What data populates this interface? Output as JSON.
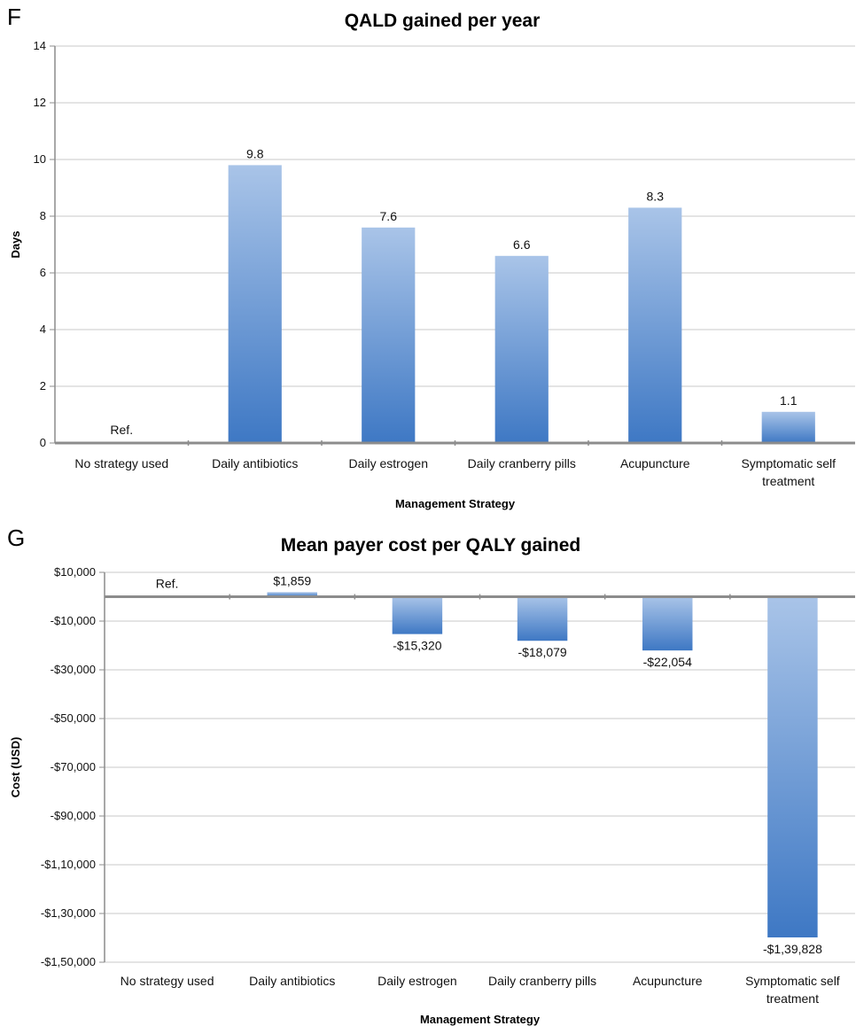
{
  "chart_data": [
    {
      "panel": "F",
      "type": "bar",
      "title": "QALD gained per year",
      "xlabel": "Management Strategy",
      "ylabel": "Days",
      "categories": [
        "No strategy used",
        "Daily antibiotics",
        "Daily estrogen",
        "Daily cranberry pills",
        "Acupuncture",
        "Symptomatic self treatment"
      ],
      "values": [
        0,
        9.8,
        7.6,
        6.6,
        8.3,
        1.1
      ],
      "data_labels": [
        "Ref.",
        "9.8",
        "7.6",
        "6.6",
        "8.3",
        "1.1"
      ],
      "yticks": [
        0,
        2,
        4,
        6,
        8,
        10,
        12,
        14
      ],
      "ytick_labels": [
        "0",
        "2",
        "4",
        "6",
        "8",
        "10",
        "12",
        "14"
      ],
      "ylim": [
        0,
        14
      ],
      "grid": true,
      "legend": "none",
      "colors": {
        "bar_light": "#a9c4e8",
        "bar_dark": "#3e78c4",
        "axis": "#8c8c8c",
        "grid": "#c8c8c8"
      }
    },
    {
      "panel": "G",
      "type": "bar",
      "title": "Mean payer cost per QALY gained",
      "xlabel": "Management Strategy",
      "ylabel": "Cost (USD)",
      "categories": [
        "No strategy used",
        "Daily antibiotics",
        "Daily estrogen",
        "Daily cranberry pills",
        "Acupuncture",
        "Symptomatic self treatment"
      ],
      "values": [
        0,
        1859,
        -15320,
        -18079,
        -22054,
        -139828
      ],
      "data_labels": [
        "Ref.",
        "$1,859",
        "-$15,320",
        "-$18,079",
        "-$22,054",
        "-$1,39,828"
      ],
      "yticks": [
        10000,
        -10000,
        -30000,
        -50000,
        -70000,
        -90000,
        -110000,
        -130000,
        -150000
      ],
      "ytick_labels": [
        "$10,000",
        "-$10,000",
        "-$30,000",
        "-$50,000",
        "-$70,000",
        "-$90,000",
        "-$1,10,000",
        "-$1,30,000",
        "-$1,50,000"
      ],
      "ylim": [
        -150000,
        10000
      ],
      "grid": true,
      "legend": "none",
      "colors": {
        "bar_light": "#a9c4e8",
        "bar_dark": "#3e78c4",
        "axis": "#8c8c8c",
        "grid": "#c8c8c8"
      }
    }
  ]
}
